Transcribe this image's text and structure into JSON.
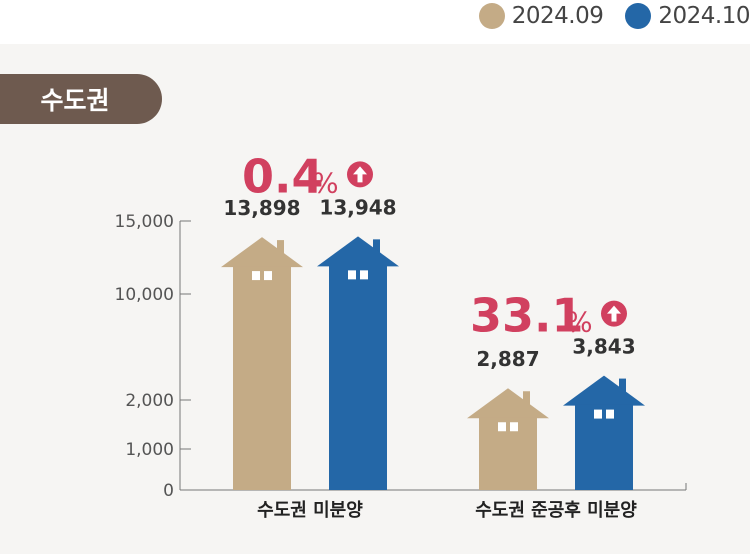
{
  "legend": [
    {
      "label": "2024.09",
      "color": "#c4ab86"
    },
    {
      "label": "2024.10",
      "color": "#2467a7"
    }
  ],
  "region_tag": "수도권",
  "chart_data": {
    "type": "bar",
    "categories": [
      "수도권 미분양",
      "수도권 준공후 미분양"
    ],
    "series": [
      {
        "name": "2024.09",
        "values": [
          13898,
          2887
        ],
        "labels": [
          "13,898",
          "2,887"
        ],
        "color": "#c4ab86"
      },
      {
        "name": "2024.10",
        "values": [
          13948,
          3843
        ],
        "labels": [
          "13,948",
          "3,843"
        ],
        "color": "#2467a7"
      }
    ],
    "y_ticks": [
      {
        "value": 0,
        "label": "0"
      },
      {
        "value": 1000,
        "label": "1,000"
      },
      {
        "value": 2000,
        "label": "2,000"
      },
      {
        "value": 10000,
        "label": "10,000"
      },
      {
        "value": 15000,
        "label": "15,000"
      }
    ],
    "ylim": [
      0,
      15000
    ],
    "changes": [
      {
        "value": "0.4",
        "unit": "%",
        "direction": "up"
      },
      {
        "value": "33.1",
        "unit": "%",
        "direction": "up"
      }
    ],
    "change_color": "#d1405f"
  }
}
